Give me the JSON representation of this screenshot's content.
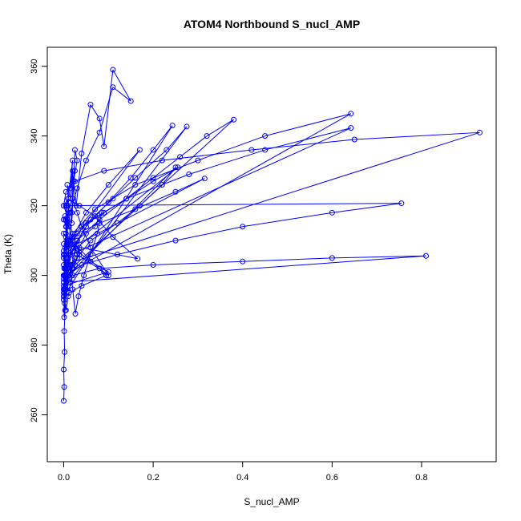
{
  "chart_data": {
    "type": "line",
    "title": "ATOM4 Northbound S_nucl_AMP",
    "xlabel": "S_nucl_AMP",
    "ylabel": "Theta (K)",
    "xlim": [
      0,
      0.93
    ],
    "ylim": [
      250,
      362
    ],
    "x_ticks": [
      0.0,
      0.2,
      0.4,
      0.6,
      0.8
    ],
    "x_tick_labels": [
      "0.0",
      "0.2",
      "0.4",
      "0.6",
      "0.8"
    ],
    "y_ticks": [
      260,
      280,
      300,
      320,
      340,
      360
    ],
    "y_tick_labels": [
      "260",
      "280",
      "300",
      "320",
      "340",
      "360"
    ],
    "marker": "open-circle",
    "color": "#0000ff",
    "series": [
      {
        "x": [
          0.0,
          0.001,
          0.0,
          0.002,
          0.001,
          0.003,
          0.002,
          0.004,
          0.003,
          0.005,
          0.006,
          0.008,
          0.005,
          0.01,
          0.012,
          0.008,
          0.015,
          0.02,
          0.018,
          0.025,
          0.03,
          0.022,
          0.028,
          0.04,
          0.06,
          0.08,
          0.09,
          0.11,
          0.15,
          0.11,
          0.08,
          0.05,
          0.03,
          0.015,
          0.005,
          0.0,
          0.002,
          0.004,
          0.001,
          0.003,
          0.006,
          0.005,
          0.01,
          0.02,
          0.015,
          0.025,
          0.018,
          0.012,
          0.008,
          0.004,
          0.002,
          0.001,
          0.0,
          0.003,
          0.002,
          0.005,
          0.004,
          0.007,
          0.01,
          0.012,
          0.02,
          0.03,
          0.09,
          0.1,
          0.06,
          0.04,
          0.03,
          0.02,
          0.01,
          0.005,
          0.0,
          0.003,
          0.008,
          0.015,
          0.02,
          0.026,
          0.033,
          0.045,
          0.06,
          0.075,
          0.085,
          0.07,
          0.05,
          0.035,
          0.025,
          0.015,
          0.01,
          0.005,
          0.0,
          0.004,
          0.01,
          0.02,
          0.17,
          0.1,
          0.05,
          0.02,
          0.005,
          0.0,
          0.002,
          0.01,
          0.25,
          0.22,
          0.17,
          0.12,
          0.06,
          0.03,
          0.01,
          0.005,
          0.0,
          0.243,
          0.2,
          0.15,
          0.1,
          0.05,
          0.02,
          0.005,
          0.0,
          0.275,
          0.23,
          0.16,
          0.11,
          0.06,
          0.03,
          0.01,
          0.0,
          0.38,
          0.32,
          0.26,
          0.2,
          0.14,
          0.08,
          0.03,
          0.0,
          0.255,
          0.2,
          0.14,
          0.09,
          0.04,
          0.01,
          0.0,
          0.315,
          0.25,
          0.16,
          0.08,
          0.03,
          0.0,
          0.165,
          0.11,
          0.07,
          0.035,
          0.01,
          0.0,
          0.755,
          0.6,
          0.4,
          0.25,
          0.12,
          0.04,
          0.01,
          0.0,
          0.81,
          0.6,
          0.4,
          0.2,
          0.08,
          0.02,
          0.0,
          0.642,
          0.45,
          0.3,
          0.16,
          0.07,
          0.02,
          0.0,
          0.642,
          0.45,
          0.28,
          0.14,
          0.05,
          0.015,
          0.0,
          0.93,
          0.65,
          0.42,
          0.22,
          0.09,
          0.025,
          0.005,
          0.0,
          0.035,
          0.02,
          0.01,
          0.0,
          0.1,
          0.06,
          0.03,
          0.01,
          0.0,
          0.095,
          0.04,
          0.012,
          0.0,
          0.03,
          0.015,
          0.005,
          0.0,
          0.025,
          0.01,
          0.0,
          0.02,
          0.008,
          0.0,
          0.012,
          0.004,
          0.0,
          0.008,
          0.003,
          0.0,
          0.005,
          0.0,
          0.001,
          0.0
        ],
        "y": [
          264,
          268,
          273,
          278,
          284,
          290,
          295,
          300,
          296,
          305,
          310,
          316,
          300,
          320,
          318,
          326,
          322,
          330,
          315,
          336,
          333,
          327,
          320,
          335,
          349,
          345,
          337,
          359,
          350,
          354,
          341,
          333,
          325,
          318,
          312,
          306,
          300,
          296,
          302,
          308,
          314,
          320,
          322,
          333,
          325,
          330,
          318,
          310,
          303,
          297,
          292,
          288,
          296,
          302,
          306,
          311,
          316,
          320,
          322,
          314,
          310,
          306,
          301,
          300,
          308,
          314,
          318,
          322,
          319,
          314,
          316,
          317,
          309,
          303,
          296,
          289,
          294,
          300,
          306,
          312,
          318,
          314,
          312,
          308,
          303,
          298,
          294,
          290,
          296,
          299,
          303,
          310,
          336,
          326,
          318,
          311,
          305,
          300,
          296,
          300,
          331,
          326,
          320,
          315,
          310,
          305,
          300,
          296,
          294,
          343,
          336,
          328,
          321,
          314,
          307,
          300,
          296,
          342.7,
          336,
          328,
          322,
          316,
          310,
          305,
          300,
          344.7,
          340,
          334,
          328,
          322,
          316,
          310,
          305,
          331,
          327,
          322,
          318,
          314,
          310,
          307,
          327.8,
          324,
          319,
          315,
          312,
          309,
          304.8,
          311,
          317,
          320,
          322,
          320,
          320.7,
          318,
          314,
          310,
          306,
          303,
          300,
          298,
          305.6,
          305,
          304,
          303,
          302,
          300,
          300,
          346.4,
          340,
          333,
          326,
          319,
          312,
          305,
          342.3,
          336,
          329,
          322,
          315,
          309,
          303,
          341,
          339,
          336,
          333,
          330,
          327,
          324,
          320,
          306,
          303,
          300,
          297,
          301,
          304,
          307,
          310,
          312,
          300,
          297,
          295,
          293,
          310,
          306,
          302,
          299,
          305,
          301,
          298,
          302,
          299,
          296,
          300,
          297,
          295,
          299,
          296,
          293,
          296,
          294,
          294,
          296
        ]
      }
    ]
  }
}
